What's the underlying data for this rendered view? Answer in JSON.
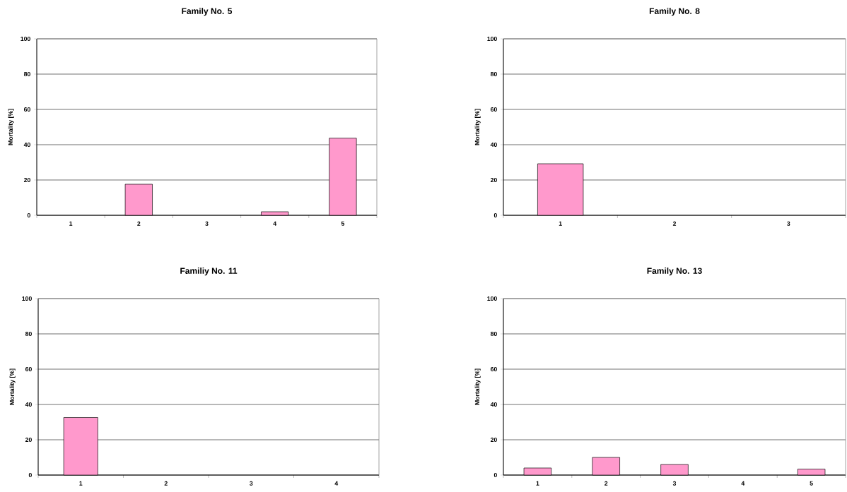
{
  "chart_data": [
    {
      "type": "bar",
      "title": "Family No. 5",
      "ylabel": "Mortality [%]",
      "categories": [
        "1",
        "2",
        "3",
        "4",
        "5"
      ],
      "values": [
        0,
        17.6,
        0,
        2,
        43.7
      ],
      "color": "#ff99cc",
      "ylim": [
        0,
        100
      ],
      "yticks": [
        0,
        20,
        40,
        60,
        80,
        100
      ],
      "grid": "y"
    },
    {
      "type": "bar",
      "title": "Family No. 8",
      "ylabel": "Mortality [%]",
      "categories": [
        "1",
        "2",
        "3"
      ],
      "values": [
        29.2,
        0,
        0
      ],
      "color": "#ff99cc",
      "ylim": [
        0,
        100
      ],
      "yticks": [
        0,
        20,
        40,
        60,
        80,
        100
      ],
      "grid": "y"
    },
    {
      "type": "bar",
      "title": "Familiy No. 11",
      "ylabel": "Mortality [%]",
      "categories": [
        "1",
        "2",
        "3",
        "4"
      ],
      "values": [
        32.6,
        0,
        0,
        0
      ],
      "color": "#ff99cc",
      "ylim": [
        0,
        100
      ],
      "yticks": [
        0,
        20,
        40,
        60,
        80,
        100
      ],
      "grid": "y"
    },
    {
      "type": "bar",
      "title": "Family No. 13",
      "ylabel": "Mortality [%]",
      "categories": [
        "1",
        "2",
        "3",
        "4",
        "5"
      ],
      "values": [
        4,
        10,
        6,
        0,
        3.4
      ],
      "color": "#ff99cc",
      "ylim": [
        0,
        100
      ],
      "yticks": [
        0,
        20,
        40,
        60,
        80,
        100
      ],
      "grid": "y"
    }
  ]
}
